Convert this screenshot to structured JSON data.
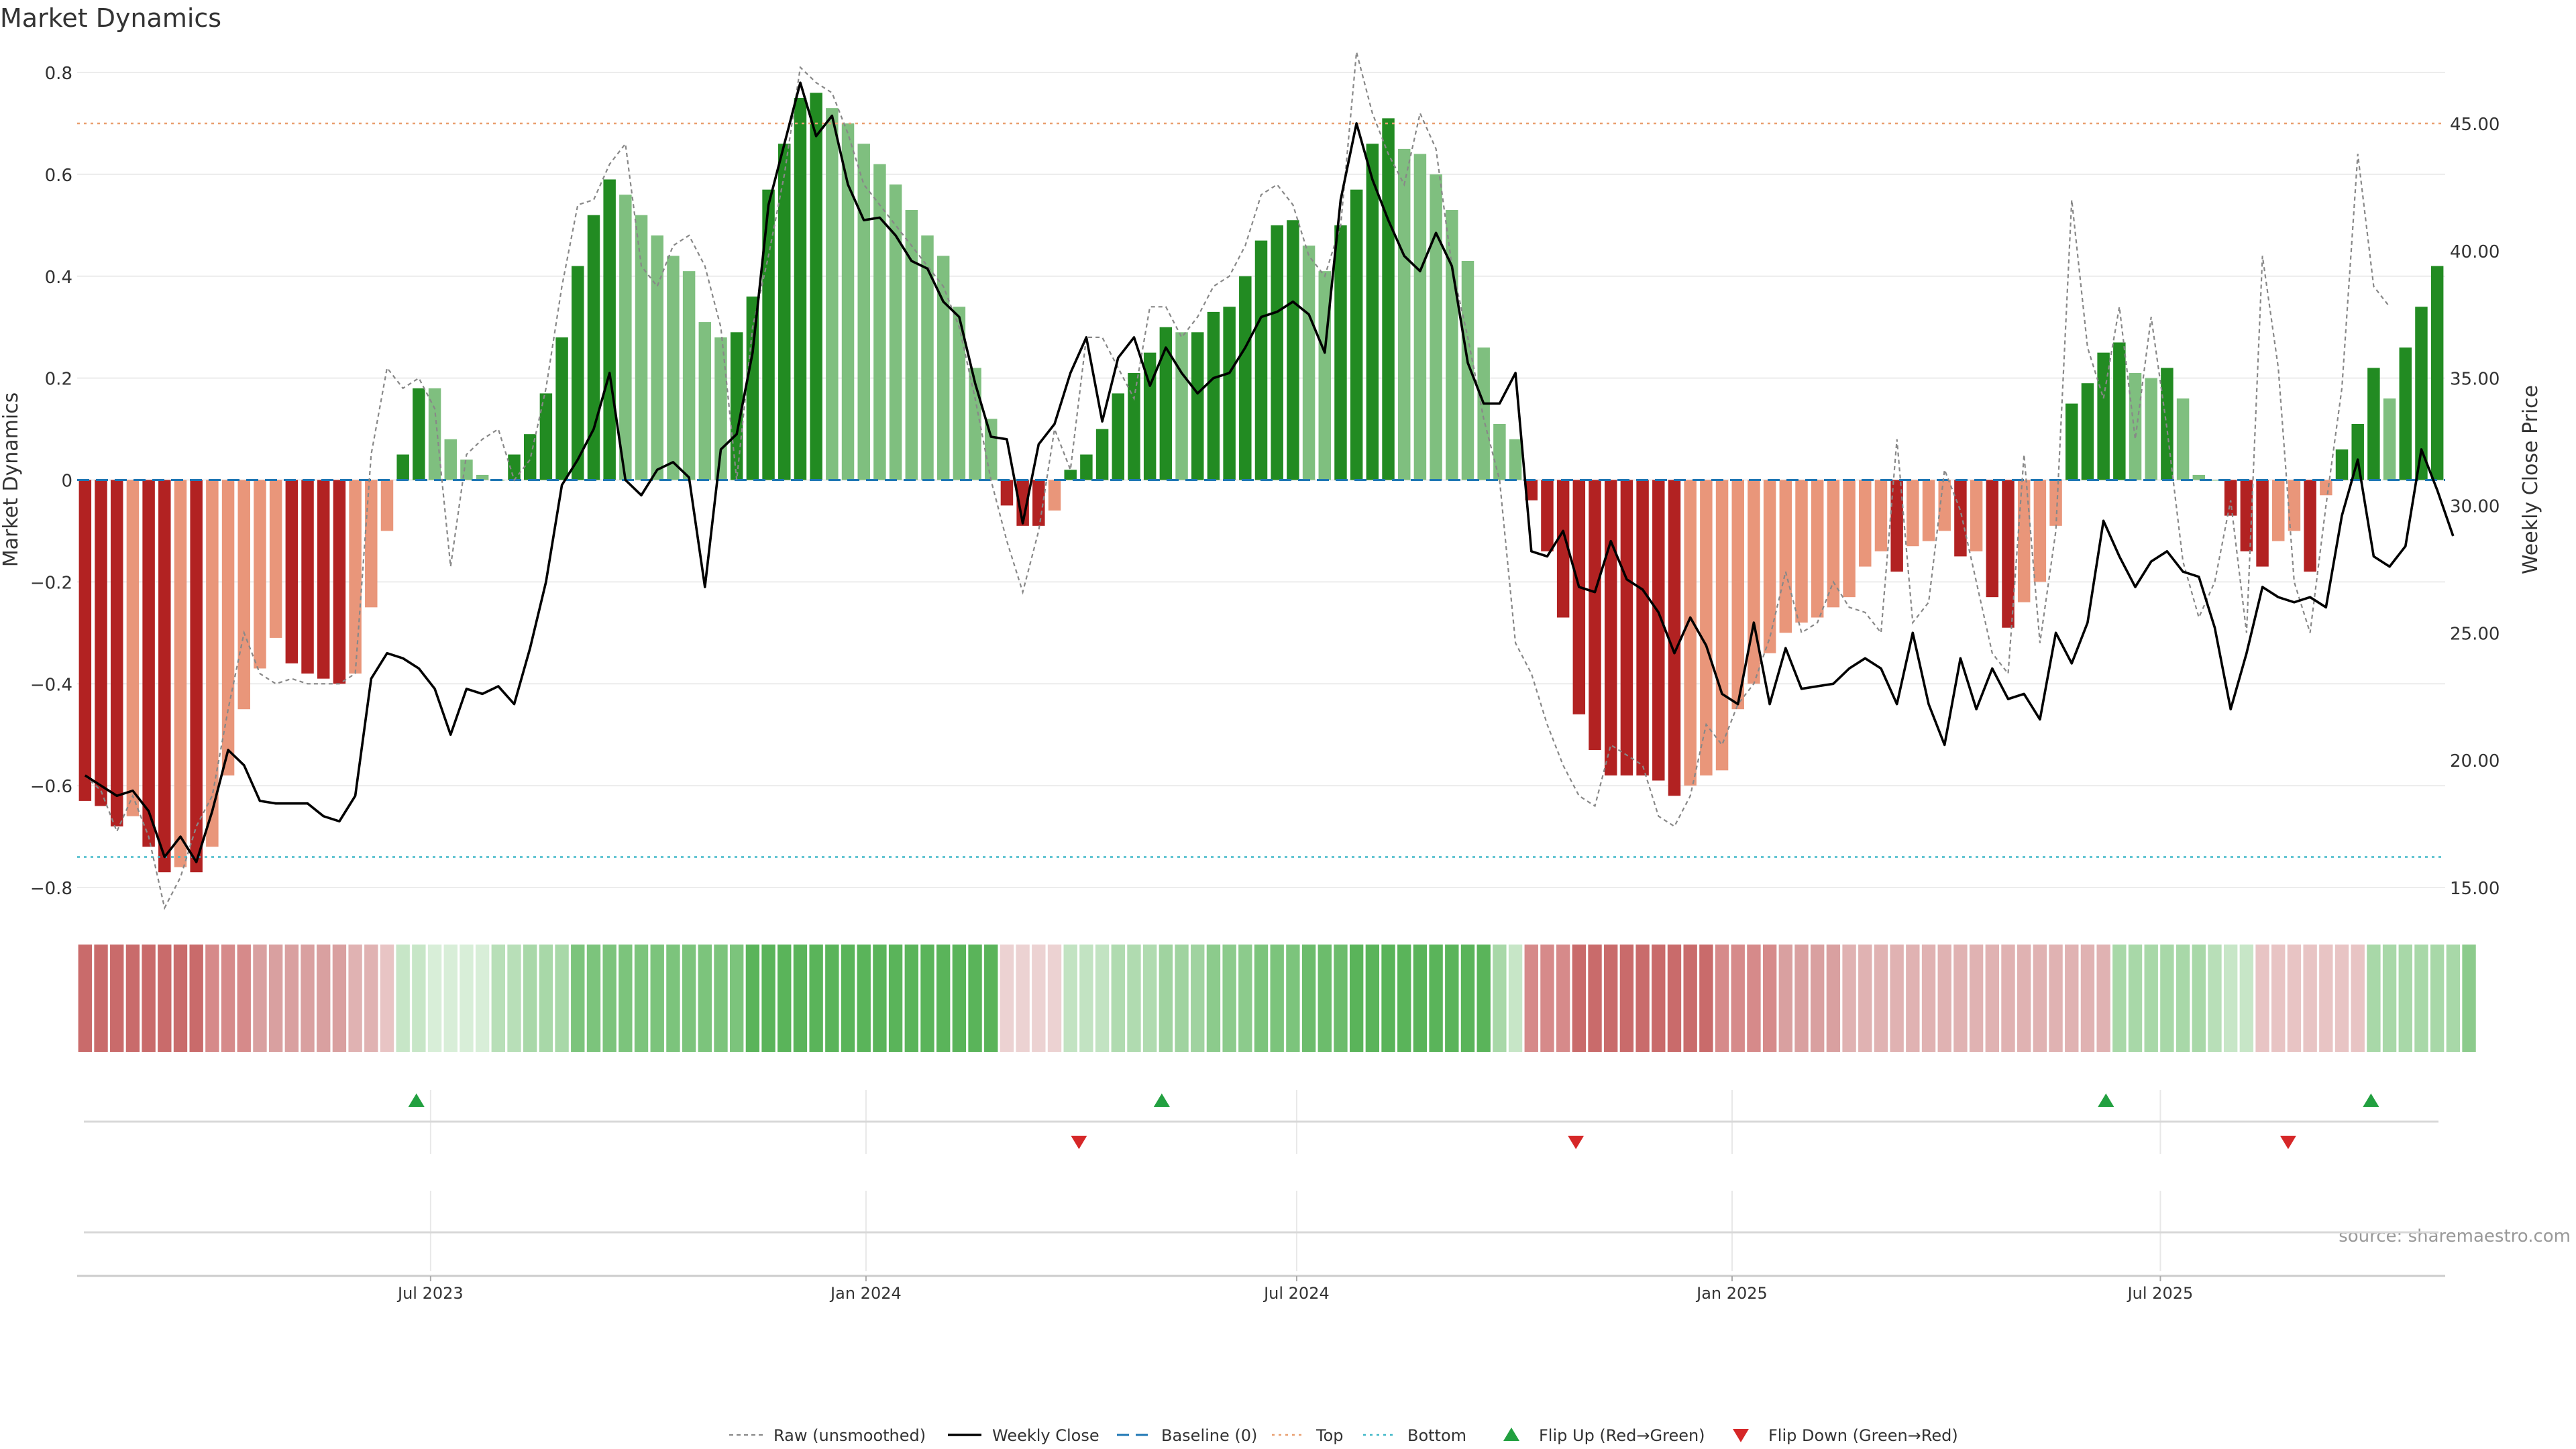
{
  "chart_data": {
    "type": "bar",
    "title": "Market Dynamics",
    "ylabel": "Market Dynamics",
    "y2label": "Weekly Close Price",
    "ylim": [
      -0.8,
      0.8
    ],
    "y2lim": [
      15,
      47
    ],
    "yticks": [
      0.8,
      0.6,
      0.4,
      0.2,
      0,
      -0.2,
      -0.4,
      -0.6,
      -0.8
    ],
    "ytick_labels": [
      "0.8",
      "0.6",
      "0.4",
      "0.2",
      "0",
      "−0.2",
      "−0.4",
      "−0.6",
      "−0.8"
    ],
    "y2ticks": [
      45,
      40,
      35,
      30,
      25,
      20,
      15
    ],
    "y2tick_labels": [
      "45.00",
      "40.00",
      "35.00",
      "30.00",
      "25.00",
      "20.00",
      "15.00"
    ],
    "x_start_date": "2023-02-05",
    "x_end_date": "2025-10-26",
    "xtick_dates": [
      "2023-07-01",
      "2024-01-01",
      "2024-07-01",
      "2025-01-01",
      "2025-07-01"
    ],
    "xtick_labels": [
      "Jul 2023",
      "Jan 2024",
      "Jul 2024",
      "Jan 2025",
      "Jul 2025"
    ],
    "top_level": 0.7,
    "bottom_level": -0.74,
    "baseline": 0,
    "grid": true,
    "legend_location": "bottom-center",
    "colors": {
      "strong_green": "#228b22",
      "light_green": "#7fbf7f",
      "strong_red": "#b22222",
      "light_red": "#e9967a",
      "top_line": "#e9a070",
      "bottom_line": "#40b8c8",
      "baseline": "#1f77b4",
      "raw": "#888888",
      "close": "#000000",
      "flip_up": "#22a040",
      "flip_down": "#d62728"
    },
    "legend": [
      {
        "label": "Raw (unsmoothed)",
        "symbol": "raw"
      },
      {
        "label": "Weekly Close",
        "symbol": "close"
      },
      {
        "label": "Baseline (0)",
        "symbol": "baseline"
      },
      {
        "label": "Top",
        "symbol": "top"
      },
      {
        "label": "Bottom",
        "symbol": "bottom"
      },
      {
        "label": "Flip Up (Red→Green)",
        "symbol": "flip_up"
      },
      {
        "label": "Flip Down (Green→Red)",
        "symbol": "flip_down"
      }
    ],
    "source_text": "source: sharemaestro.com",
    "bars": [
      {
        "v": -0.63,
        "c": "dr"
      },
      {
        "v": -0.64,
        "c": "dr"
      },
      {
        "v": -0.68,
        "c": "dr"
      },
      {
        "v": -0.66,
        "c": "lr"
      },
      {
        "v": -0.72,
        "c": "dr"
      },
      {
        "v": -0.77,
        "c": "dr"
      },
      {
        "v": -0.76,
        "c": "lr"
      },
      {
        "v": -0.77,
        "c": "dr"
      },
      {
        "v": -0.72,
        "c": "lr"
      },
      {
        "v": -0.58,
        "c": "lr"
      },
      {
        "v": -0.45,
        "c": "lr"
      },
      {
        "v": -0.37,
        "c": "lr"
      },
      {
        "v": -0.31,
        "c": "lr"
      },
      {
        "v": -0.36,
        "c": "dr"
      },
      {
        "v": -0.38,
        "c": "dr"
      },
      {
        "v": -0.39,
        "c": "dr"
      },
      {
        "v": -0.4,
        "c": "dr"
      },
      {
        "v": -0.38,
        "c": "lr"
      },
      {
        "v": -0.25,
        "c": "lr"
      },
      {
        "v": -0.1,
        "c": "lr"
      },
      {
        "v": 0.05,
        "c": "dg"
      },
      {
        "v": 0.18,
        "c": "dg"
      },
      {
        "v": 0.18,
        "c": "lg"
      },
      {
        "v": 0.08,
        "c": "lg"
      },
      {
        "v": 0.04,
        "c": "lg"
      },
      {
        "v": 0.01,
        "c": "lg"
      },
      {
        "v": 0.0,
        "c": "lg"
      },
      {
        "v": 0.05,
        "c": "dg"
      },
      {
        "v": 0.09,
        "c": "dg"
      },
      {
        "v": 0.17,
        "c": "dg"
      },
      {
        "v": 0.28,
        "c": "dg"
      },
      {
        "v": 0.42,
        "c": "dg"
      },
      {
        "v": 0.52,
        "c": "dg"
      },
      {
        "v": 0.59,
        "c": "dg"
      },
      {
        "v": 0.56,
        "c": "lg"
      },
      {
        "v": 0.52,
        "c": "lg"
      },
      {
        "v": 0.48,
        "c": "lg"
      },
      {
        "v": 0.44,
        "c": "lg"
      },
      {
        "v": 0.41,
        "c": "lg"
      },
      {
        "v": 0.31,
        "c": "lg"
      },
      {
        "v": 0.28,
        "c": "lg"
      },
      {
        "v": 0.29,
        "c": "dg"
      },
      {
        "v": 0.36,
        "c": "dg"
      },
      {
        "v": 0.57,
        "c": "dg"
      },
      {
        "v": 0.66,
        "c": "dg"
      },
      {
        "v": 0.75,
        "c": "dg"
      },
      {
        "v": 0.76,
        "c": "dg"
      },
      {
        "v": 0.73,
        "c": "lg"
      },
      {
        "v": 0.7,
        "c": "lg"
      },
      {
        "v": 0.66,
        "c": "lg"
      },
      {
        "v": 0.62,
        "c": "lg"
      },
      {
        "v": 0.58,
        "c": "lg"
      },
      {
        "v": 0.53,
        "c": "lg"
      },
      {
        "v": 0.48,
        "c": "lg"
      },
      {
        "v": 0.44,
        "c": "lg"
      },
      {
        "v": 0.34,
        "c": "lg"
      },
      {
        "v": 0.22,
        "c": "lg"
      },
      {
        "v": 0.12,
        "c": "lg"
      },
      {
        "v": -0.05,
        "c": "dr"
      },
      {
        "v": -0.09,
        "c": "dr"
      },
      {
        "v": -0.09,
        "c": "dr"
      },
      {
        "v": -0.06,
        "c": "lr"
      },
      {
        "v": 0.02,
        "c": "dg"
      },
      {
        "v": 0.05,
        "c": "dg"
      },
      {
        "v": 0.1,
        "c": "dg"
      },
      {
        "v": 0.17,
        "c": "dg"
      },
      {
        "v": 0.21,
        "c": "dg"
      },
      {
        "v": 0.25,
        "c": "dg"
      },
      {
        "v": 0.3,
        "c": "dg"
      },
      {
        "v": 0.29,
        "c": "lg"
      },
      {
        "v": 0.29,
        "c": "dg"
      },
      {
        "v": 0.33,
        "c": "dg"
      },
      {
        "v": 0.34,
        "c": "dg"
      },
      {
        "v": 0.4,
        "c": "dg"
      },
      {
        "v": 0.47,
        "c": "dg"
      },
      {
        "v": 0.5,
        "c": "dg"
      },
      {
        "v": 0.51,
        "c": "dg"
      },
      {
        "v": 0.46,
        "c": "lg"
      },
      {
        "v": 0.41,
        "c": "lg"
      },
      {
        "v": 0.5,
        "c": "dg"
      },
      {
        "v": 0.57,
        "c": "dg"
      },
      {
        "v": 0.66,
        "c": "dg"
      },
      {
        "v": 0.71,
        "c": "dg"
      },
      {
        "v": 0.65,
        "c": "lg"
      },
      {
        "v": 0.64,
        "c": "lg"
      },
      {
        "v": 0.6,
        "c": "lg"
      },
      {
        "v": 0.53,
        "c": "lg"
      },
      {
        "v": 0.43,
        "c": "lg"
      },
      {
        "v": 0.26,
        "c": "lg"
      },
      {
        "v": 0.11,
        "c": "lg"
      },
      {
        "v": 0.08,
        "c": "lg"
      },
      {
        "v": -0.04,
        "c": "dr"
      },
      {
        "v": -0.14,
        "c": "dr"
      },
      {
        "v": -0.27,
        "c": "dr"
      },
      {
        "v": -0.46,
        "c": "dr"
      },
      {
        "v": -0.53,
        "c": "dr"
      },
      {
        "v": -0.58,
        "c": "dr"
      },
      {
        "v": -0.58,
        "c": "dr"
      },
      {
        "v": -0.58,
        "c": "dr"
      },
      {
        "v": -0.59,
        "c": "dr"
      },
      {
        "v": -0.62,
        "c": "dr"
      },
      {
        "v": -0.6,
        "c": "lr"
      },
      {
        "v": -0.58,
        "c": "lr"
      },
      {
        "v": -0.57,
        "c": "lr"
      },
      {
        "v": -0.45,
        "c": "lr"
      },
      {
        "v": -0.4,
        "c": "lr"
      },
      {
        "v": -0.34,
        "c": "lr"
      },
      {
        "v": -0.3,
        "c": "lr"
      },
      {
        "v": -0.28,
        "c": "lr"
      },
      {
        "v": -0.27,
        "c": "lr"
      },
      {
        "v": -0.25,
        "c": "lr"
      },
      {
        "v": -0.23,
        "c": "lr"
      },
      {
        "v": -0.17,
        "c": "lr"
      },
      {
        "v": -0.14,
        "c": "lr"
      },
      {
        "v": -0.18,
        "c": "dr"
      },
      {
        "v": -0.13,
        "c": "lr"
      },
      {
        "v": -0.12,
        "c": "lr"
      },
      {
        "v": -0.1,
        "c": "lr"
      },
      {
        "v": -0.15,
        "c": "dr"
      },
      {
        "v": -0.14,
        "c": "lr"
      },
      {
        "v": -0.23,
        "c": "dr"
      },
      {
        "v": -0.29,
        "c": "dr"
      },
      {
        "v": -0.24,
        "c": "lr"
      },
      {
        "v": -0.2,
        "c": "lr"
      },
      {
        "v": -0.09,
        "c": "lr"
      },
      {
        "v": 0.15,
        "c": "dg"
      },
      {
        "v": 0.19,
        "c": "dg"
      },
      {
        "v": 0.25,
        "c": "dg"
      },
      {
        "v": 0.27,
        "c": "dg"
      },
      {
        "v": 0.21,
        "c": "lg"
      },
      {
        "v": 0.2,
        "c": "lg"
      },
      {
        "v": 0.22,
        "c": "dg"
      },
      {
        "v": 0.16,
        "c": "lg"
      },
      {
        "v": 0.01,
        "c": "lg"
      },
      {
        "v": 0.0,
        "c": "lg"
      },
      {
        "v": -0.07,
        "c": "dr"
      },
      {
        "v": -0.14,
        "c": "dr"
      },
      {
        "v": -0.17,
        "c": "dr"
      },
      {
        "v": -0.12,
        "c": "lr"
      },
      {
        "v": -0.1,
        "c": "lr"
      },
      {
        "v": -0.18,
        "c": "dr"
      },
      {
        "v": -0.03,
        "c": "lr"
      },
      {
        "v": 0.06,
        "c": "dg"
      },
      {
        "v": 0.11,
        "c": "dg"
      },
      {
        "v": 0.22,
        "c": "dg"
      },
      {
        "v": 0.16,
        "c": "lg"
      },
      {
        "v": 0.26,
        "c": "dg"
      },
      {
        "v": 0.34,
        "c": "dg"
      },
      {
        "v": 0.42,
        "c": "dg"
      }
    ],
    "raw": [
      -0.58,
      -0.61,
      -0.69,
      -0.62,
      -0.7,
      -0.84,
      -0.78,
      -0.68,
      -0.62,
      -0.45,
      -0.3,
      -0.38,
      -0.4,
      -0.39,
      -0.4,
      -0.4,
      -0.4,
      -0.38,
      0.05,
      0.22,
      0.18,
      0.2,
      0.14,
      -0.17,
      0.05,
      0.08,
      0.1,
      0.0,
      0.04,
      0.18,
      0.38,
      0.54,
      0.55,
      0.62,
      0.66,
      0.42,
      0.38,
      0.46,
      0.48,
      0.42,
      0.3,
      0.0,
      0.3,
      0.44,
      0.6,
      0.81,
      0.78,
      0.76,
      0.68,
      0.58,
      0.54,
      0.5,
      0.46,
      0.42,
      0.38,
      0.3,
      0.16,
      0.0,
      -0.12,
      -0.22,
      -0.1,
      0.1,
      0.02,
      0.28,
      0.28,
      0.22,
      0.16,
      0.34,
      0.34,
      0.28,
      0.32,
      0.38,
      0.4,
      0.46,
      0.56,
      0.58,
      0.54,
      0.44,
      0.4,
      0.5,
      0.84,
      0.72,
      0.64,
      0.58,
      0.72,
      0.65,
      0.42,
      0.28,
      0.12,
      0.0,
      -0.32,
      -0.38,
      -0.48,
      -0.56,
      -0.62,
      -0.64,
      -0.52,
      -0.54,
      -0.56,
      -0.66,
      -0.68,
      -0.62,
      -0.48,
      -0.52,
      -0.44,
      -0.4,
      -0.31,
      -0.18,
      -0.3,
      -0.28,
      -0.2,
      -0.25,
      -0.26,
      -0.3,
      0.08,
      -0.28,
      -0.24,
      0.02,
      -0.06,
      -0.2,
      -0.34,
      -0.38,
      0.05,
      -0.32,
      -0.1,
      0.55,
      0.26,
      0.16,
      0.34,
      0.08,
      0.32,
      0.1,
      -0.16,
      -0.27,
      -0.2,
      -0.04,
      -0.3,
      0.44,
      0.22,
      -0.2,
      -0.3,
      -0.05,
      0.18,
      0.64,
      0.38,
      0.34
    ],
    "close": [
      19.4,
      19.0,
      18.6,
      18.8,
      18.0,
      16.2,
      17.0,
      16.0,
      18.0,
      20.4,
      19.8,
      18.4,
      18.3,
      18.3,
      18.3,
      17.8,
      17.6,
      18.6,
      23.2,
      24.2,
      24.0,
      23.6,
      22.8,
      21.0,
      22.8,
      22.6,
      22.9,
      22.2,
      24.4,
      27.0,
      30.8,
      31.8,
      33.0,
      35.2,
      31.0,
      30.4,
      31.4,
      31.7,
      31.1,
      26.8,
      32.2,
      32.8,
      36.0,
      41.8,
      44.2,
      46.6,
      44.5,
      45.3,
      42.6,
      41.2,
      41.3,
      40.6,
      39.6,
      39.3,
      38.0,
      37.4,
      34.8,
      32.7,
      32.6,
      29.3,
      32.4,
      33.2,
      35.2,
      36.6,
      33.3,
      35.8,
      36.6,
      34.7,
      36.2,
      35.2,
      34.4,
      35.0,
      35.2,
      36.2,
      37.4,
      37.6,
      38.0,
      37.5,
      36.0,
      42.0,
      45.0,
      42.8,
      41.2,
      39.8,
      39.2,
      40.7,
      39.4,
      35.6,
      34.0,
      34.0,
      35.2,
      28.2,
      28.0,
      29.0,
      26.8,
      26.6,
      28.6,
      27.1,
      26.7,
      25.8,
      24.2,
      25.6,
      24.5,
      22.6,
      22.2,
      25.4,
      22.2,
      24.4,
      22.8,
      22.9,
      23.0,
      23.6,
      24.0,
      23.6,
      22.2,
      25.0,
      22.2,
      20.6,
      24.0,
      22.0,
      23.6,
      22.4,
      22.6,
      21.6,
      25.0,
      23.8,
      25.4,
      29.4,
      28.0,
      26.8,
      27.8,
      28.2,
      27.4,
      27.2,
      25.2,
      22.0,
      24.2,
      26.8,
      26.4,
      26.2,
      26.4,
      26.0,
      29.6,
      31.8,
      28.0,
      27.6,
      28.4,
      32.2,
      30.6,
      28.8
    ],
    "strip_colors": [
      "#c96b6b",
      "#c96b6b",
      "#c96b6b",
      "#c96b6b",
      "#c96b6b",
      "#c96b6b",
      "#c96b6b",
      "#c96b6b",
      "#d68a8a",
      "#d68a8a",
      "#d68a8a",
      "#d9a0a0",
      "#d9a0a0",
      "#d9a0a0",
      "#d9a0a0",
      "#d9a0a0",
      "#d9a0a0",
      "#e0b2b2",
      "#e0b2b2",
      "#e8c4c4",
      "#c7e6c7",
      "#c7e6c7",
      "#d8eed8",
      "#d8eed8",
      "#d8eed8",
      "#d8eed8",
      "#b8dfb8",
      "#b8dfb8",
      "#a8d8a8",
      "#a8d8a8",
      "#a8d8a8",
      "#7cc47c",
      "#7cc47c",
      "#7cc47c",
      "#7cc47c",
      "#7cc47c",
      "#7cc47c",
      "#7cc47c",
      "#7cc47c",
      "#7cc47c",
      "#7cc47c",
      "#7cc47c",
      "#5ab45a",
      "#5ab45a",
      "#5ab45a",
      "#5ab45a",
      "#5ab45a",
      "#5ab45a",
      "#5ab45a",
      "#5ab45a",
      "#5ab45a",
      "#5ab45a",
      "#5ab45a",
      "#5ab45a",
      "#5ab45a",
      "#5ab45a",
      "#5ab45a",
      "#5ab45a",
      "#ecd2d2",
      "#ecd2d2",
      "#ecd2d2",
      "#ecd2d2",
      "#c2e3c2",
      "#c2e3c2",
      "#c2e3c2",
      "#b0dbb0",
      "#b0dbb0",
      "#b0dbb0",
      "#a0d3a0",
      "#a0d3a0",
      "#a0d3a0",
      "#8ccb8c",
      "#8ccb8c",
      "#8ccb8c",
      "#7cc47c",
      "#7cc47c",
      "#7cc47c",
      "#6cbc6c",
      "#6cbc6c",
      "#6cbc6c",
      "#5ab45a",
      "#5ab45a",
      "#5ab45a",
      "#5ab45a",
      "#5ab45a",
      "#5ab45a",
      "#5ab45a",
      "#5ab45a",
      "#5ab45a",
      "#a8d8a8",
      "#c7e6c7",
      "#d68a8a",
      "#d68a8a",
      "#d68a8a",
      "#c96b6b",
      "#c96b6b",
      "#c96b6b",
      "#c96b6b",
      "#c96b6b",
      "#c96b6b",
      "#c96b6b",
      "#c96b6b",
      "#c96b6b",
      "#d68a8a",
      "#d68a8a",
      "#d68a8a",
      "#d68a8a",
      "#d9a0a0",
      "#d9a0a0",
      "#d9a0a0",
      "#d9a0a0",
      "#e0b2b2",
      "#e0b2b2",
      "#e0b2b2",
      "#e0b2b2",
      "#e0b2b2",
      "#e0b2b2",
      "#e0b2b2",
      "#e0b2b2",
      "#e0b2b2",
      "#e0b2b2",
      "#e0b2b2",
      "#e0b2b2",
      "#e0b2b2",
      "#e0b2b2",
      "#e0b2b2",
      "#e0b2b2",
      "#e0b2b2",
      "#a8d8a8",
      "#a8d8a8",
      "#a8d8a8",
      "#a8d8a8",
      "#a8d8a8",
      "#a8d8a8",
      "#b8dfb8",
      "#c7e6c7",
      "#c7e6c7",
      "#e8c4c4",
      "#e8c4c4",
      "#e8c4c4",
      "#e8c4c4",
      "#e8c4c4",
      "#e8c4c4",
      "#e8c4c4",
      "#a8d8a8",
      "#a8d8a8",
      "#a8d8a8",
      "#a8d8a8",
      "#a8d8a8",
      "#a8d8a8",
      "#8ccb8c"
    ],
    "flips": [
      {
        "date": "2023-06-25",
        "type": "up"
      },
      {
        "date": "2024-03-31",
        "type": "down"
      },
      {
        "date": "2024-05-05",
        "type": "up"
      },
      {
        "date": "2024-10-27",
        "type": "down"
      },
      {
        "date": "2025-06-08",
        "type": "up"
      },
      {
        "date": "2025-08-24",
        "type": "down"
      },
      {
        "date": "2025-09-28",
        "type": "up"
      }
    ]
  }
}
